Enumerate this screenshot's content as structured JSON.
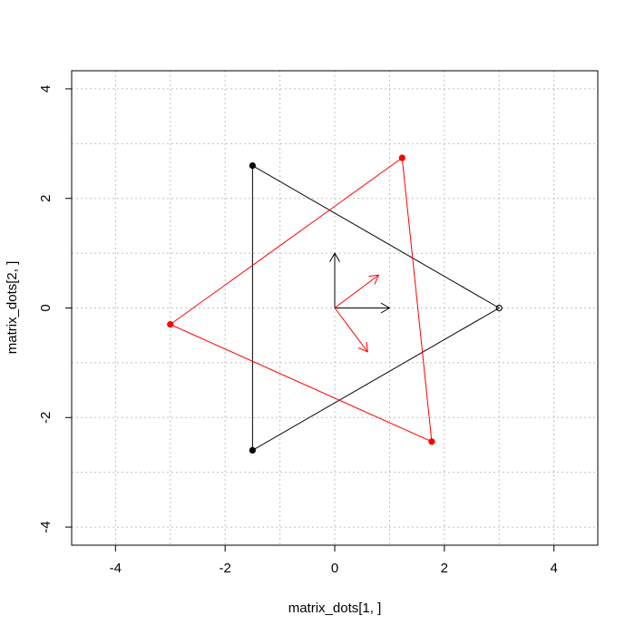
{
  "chart_data": {
    "type": "line",
    "title": "",
    "xlabel": "matrix_dots[1, ]",
    "ylabel": "matrix_dots[2, ]",
    "xlim": [
      -4.8,
      4.8
    ],
    "ylim": [
      -4.33,
      4.33
    ],
    "x_ticks": [
      -4,
      -2,
      0,
      2,
      4
    ],
    "y_ticks": [
      -4,
      -2,
      0,
      2,
      4
    ],
    "x_tick_labels": [
      "-4",
      "-2",
      "0",
      "2",
      "4"
    ],
    "y_tick_labels": [
      "-4",
      "-2",
      "0",
      "2",
      "4"
    ],
    "grid": true,
    "grid_lines_x": [
      -4,
      -3,
      -2,
      -1,
      0,
      1,
      2,
      3,
      4
    ],
    "grid_lines_y": [
      -4,
      -3,
      -2,
      -1,
      0,
      1,
      2,
      3,
      4
    ],
    "series": [
      {
        "color": "#000000",
        "closed": true,
        "points": [
          [
            3.0,
            0.0
          ],
          [
            -1.5,
            2.598
          ],
          [
            -1.5,
            -2.598
          ]
        ],
        "markers": [
          "open-circle",
          "filled-circle",
          "filled-circle"
        ]
      },
      {
        "color": "#ff0000",
        "closed": true,
        "points": [
          [
            1.23,
            2.74
          ],
          [
            -3.0,
            -0.3
          ],
          [
            1.77,
            -2.44
          ]
        ],
        "markers": [
          "filled-circle",
          "filled-circle",
          "filled-circle"
        ]
      }
    ],
    "arrows": [
      {
        "color": "#000000",
        "from": [
          0,
          0
        ],
        "to": [
          1.0,
          0.0
        ]
      },
      {
        "color": "#000000",
        "from": [
          0,
          0
        ],
        "to": [
          0.0,
          1.0
        ]
      },
      {
        "color": "#ff0000",
        "from": [
          0,
          0
        ],
        "to": [
          0.8,
          0.6
        ]
      },
      {
        "color": "#ff0000",
        "from": [
          0,
          0
        ],
        "to": [
          0.6,
          -0.8
        ]
      }
    ]
  }
}
